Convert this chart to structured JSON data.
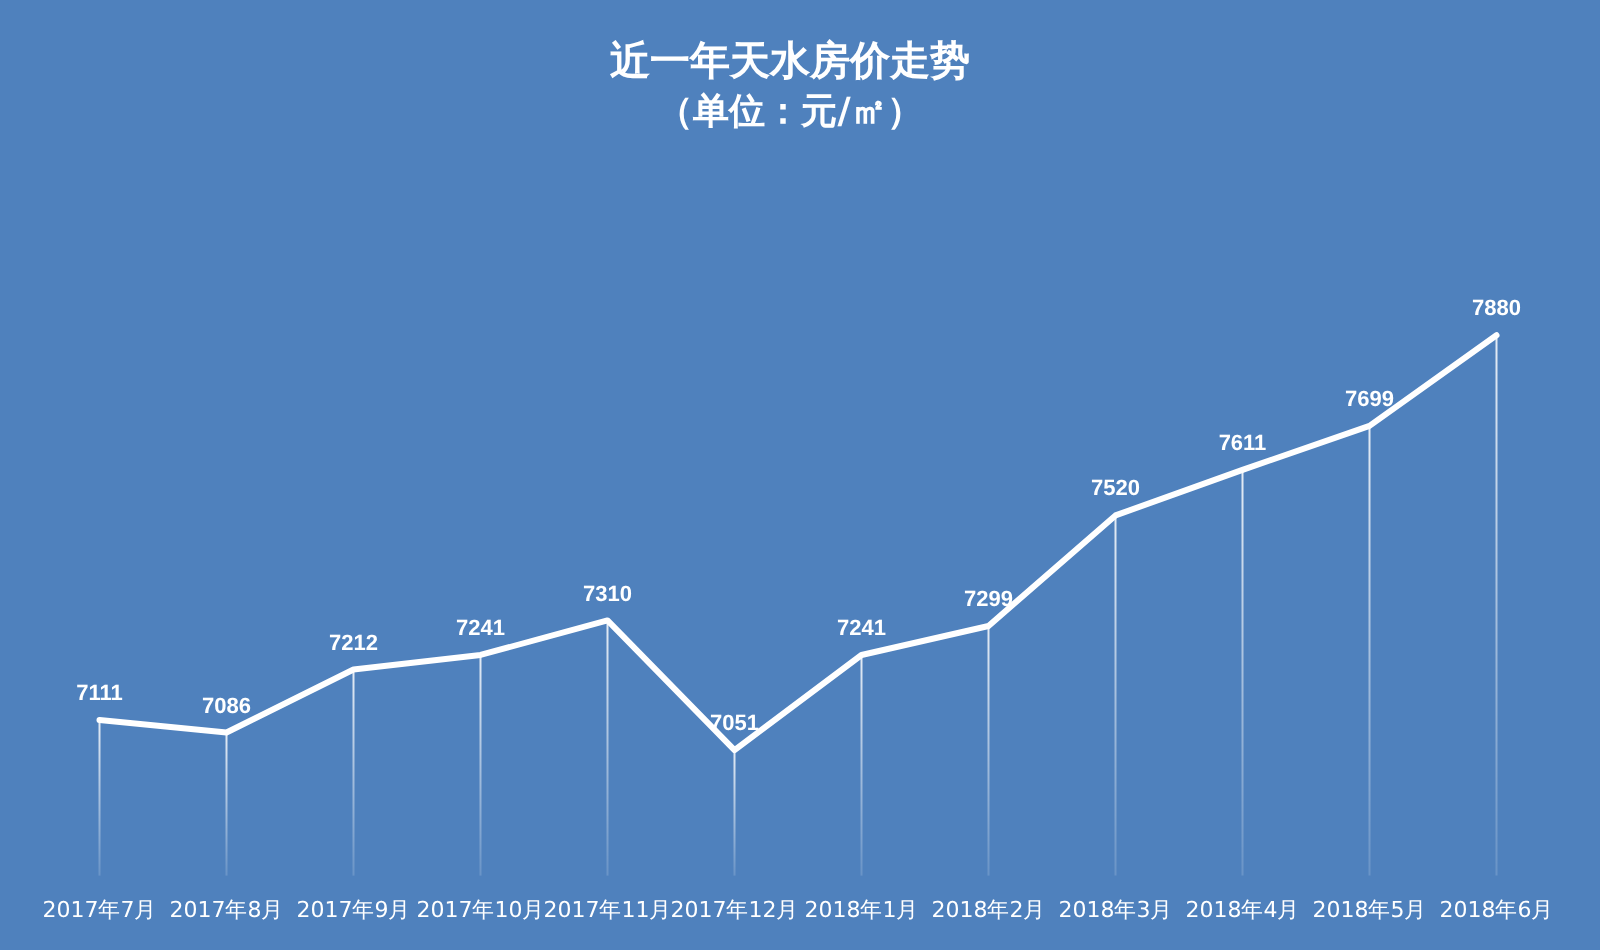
{
  "chart_data": {
    "type": "line",
    "title": "近一年天水房价走势",
    "subtitle": "（单位：元/㎡）",
    "categories": [
      "2017年7月",
      "2017年8月",
      "2017年9月",
      "2017年10月",
      "2017年11月",
      "2017年12月",
      "2018年1月",
      "2018年2月",
      "2018年3月",
      "2018年4月",
      "2018年5月",
      "2018年6月"
    ],
    "series": [
      {
        "color": "#ffffff",
        "values": [
          7111,
          7086,
          7212,
          7241,
          7310,
          7051,
          7241,
          7299,
          7520,
          7611,
          7699,
          7880
        ]
      }
    ],
    "tick_labels": "x",
    "grid": "x",
    "legend": false,
    "line_style": "solid",
    "data_labels": true
  }
}
